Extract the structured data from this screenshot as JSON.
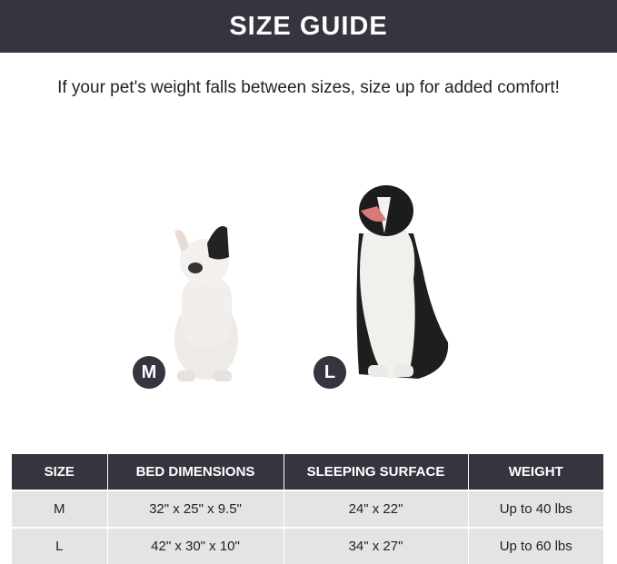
{
  "title": "SIZE GUIDE",
  "subtitle": "If your pet's weight falls between sizes, size up for added comfort!",
  "badges": {
    "medium": "M",
    "large": "L"
  },
  "colors": {
    "dark": "#34353e",
    "row": "#e4e4e4"
  },
  "table": {
    "headers": [
      "SIZE",
      "BED DIMENSIONS",
      "SLEEPING SURFACE",
      "WEIGHT"
    ],
    "rows": [
      [
        "M",
        "32\" x 25\" x 9.5\"",
        "24\" x 22\"",
        "Up to 40 lbs"
      ],
      [
        "L",
        "42\" x 30\" x 10\"",
        "34\" x 27\"",
        "Up to 60 lbs"
      ]
    ]
  }
}
